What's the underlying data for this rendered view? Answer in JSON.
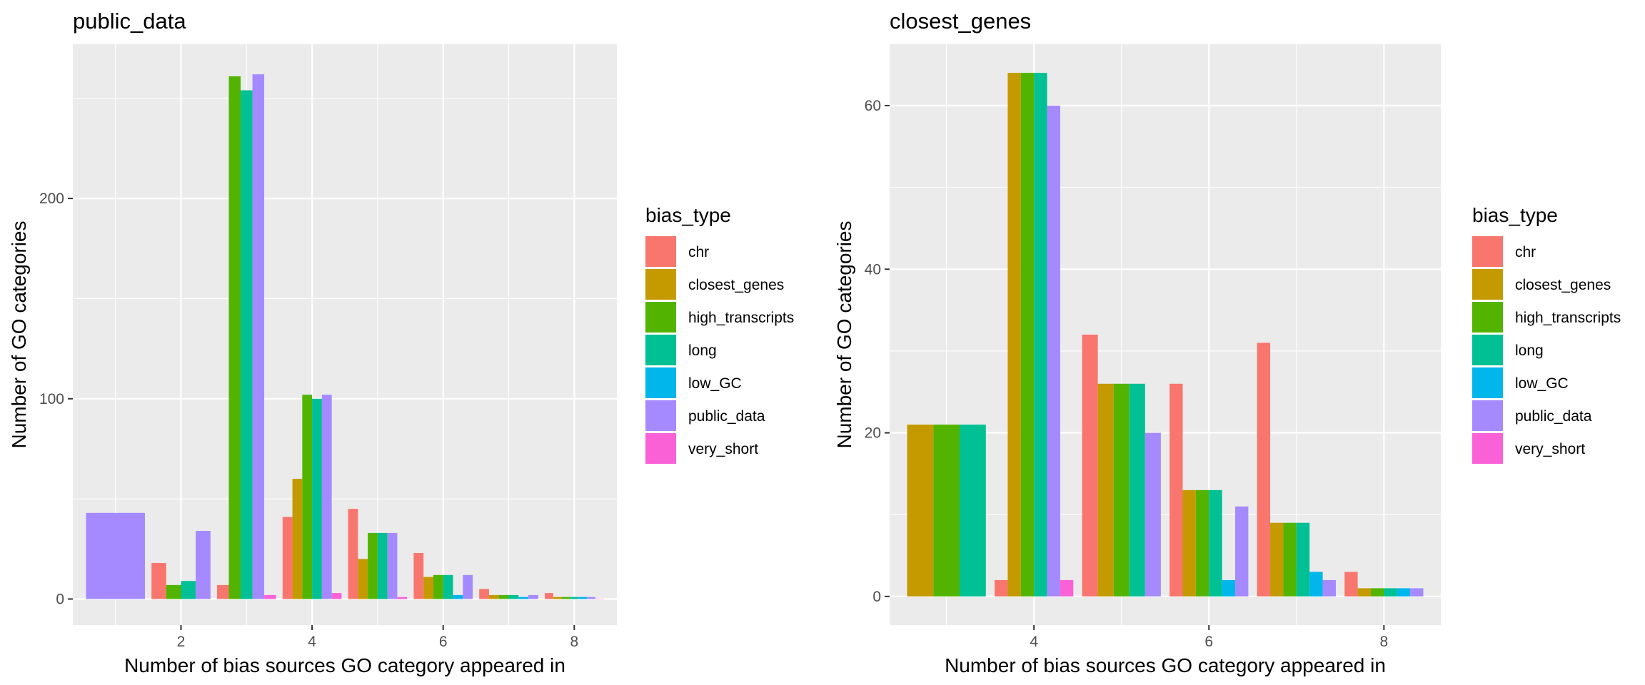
{
  "chart_data": [
    {
      "type": "bar",
      "title": "public_data",
      "xlabel": "Number of bias sources GO category appeared in",
      "ylabel": "Number of GO categories",
      "xlim": [
        0.35,
        8.65
      ],
      "ylim": [
        -13,
        277
      ],
      "x_ticks": [
        2,
        4,
        6,
        8
      ],
      "y_ticks": [
        0,
        100,
        200
      ],
      "grid": true,
      "legend": {
        "title": "bias_type",
        "position": "right",
        "entries": [
          "chr",
          "closest_genes",
          "high_transcripts",
          "long",
          "low_GC",
          "public_data",
          "very_short"
        ]
      },
      "bar_groups": [
        {
          "x": 1,
          "bars": [
            {
              "series": "public_data",
              "value": 43
            }
          ]
        },
        {
          "x": 2,
          "bars": [
            {
              "series": "chr",
              "value": 18
            },
            {
              "series": "high_transcripts",
              "value": 7
            },
            {
              "series": "long",
              "value": 9
            },
            {
              "series": "public_data",
              "value": 34
            }
          ]
        },
        {
          "x": 3,
          "bars": [
            {
              "series": "chr",
              "value": 7
            },
            {
              "series": "high_transcripts",
              "value": 261
            },
            {
              "series": "long",
              "value": 254
            },
            {
              "series": "public_data",
              "value": 262
            },
            {
              "series": "very_short",
              "value": 2
            }
          ]
        },
        {
          "x": 4,
          "bars": [
            {
              "series": "chr",
              "value": 41
            },
            {
              "series": "closest_genes",
              "value": 60
            },
            {
              "series": "high_transcripts",
              "value": 102
            },
            {
              "series": "long",
              "value": 100
            },
            {
              "series": "public_data",
              "value": 102
            },
            {
              "series": "very_short",
              "value": 3
            }
          ]
        },
        {
          "x": 5,
          "bars": [
            {
              "series": "chr",
              "value": 45
            },
            {
              "series": "closest_genes",
              "value": 20
            },
            {
              "series": "high_transcripts",
              "value": 33
            },
            {
              "series": "long",
              "value": 33
            },
            {
              "series": "public_data",
              "value": 33
            },
            {
              "series": "very_short",
              "value": 1
            }
          ]
        },
        {
          "x": 6,
          "bars": [
            {
              "series": "chr",
              "value": 23
            },
            {
              "series": "closest_genes",
              "value": 11
            },
            {
              "series": "high_transcripts",
              "value": 12
            },
            {
              "series": "long",
              "value": 12
            },
            {
              "series": "low_GC",
              "value": 2
            },
            {
              "series": "public_data",
              "value": 12
            }
          ]
        },
        {
          "x": 7,
          "bars": [
            {
              "series": "chr",
              "value": 5
            },
            {
              "series": "closest_genes",
              "value": 2
            },
            {
              "series": "high_transcripts",
              "value": 2
            },
            {
              "series": "long",
              "value": 2
            },
            {
              "series": "low_GC",
              "value": 1
            },
            {
              "series": "public_data",
              "value": 2
            }
          ]
        },
        {
          "x": 8,
          "bars": [
            {
              "series": "chr",
              "value": 3
            },
            {
              "series": "closest_genes",
              "value": 1
            },
            {
              "series": "high_transcripts",
              "value": 1
            },
            {
              "series": "long",
              "value": 1
            },
            {
              "series": "low_GC",
              "value": 1
            },
            {
              "series": "public_data",
              "value": 1
            },
            {
              "series": "very_short",
              "value": 0
            }
          ]
        }
      ]
    },
    {
      "type": "bar",
      "title": "closest_genes",
      "xlabel": "Number of bias sources GO category appeared in",
      "ylabel": "Number of GO categories",
      "xlim": [
        2.35,
        8.65
      ],
      "ylim": [
        -3.5,
        67.5
      ],
      "x_ticks": [
        4,
        6,
        8
      ],
      "y_ticks": [
        0,
        20,
        40,
        60
      ],
      "grid": true,
      "legend": {
        "title": "bias_type",
        "position": "right",
        "entries": [
          "chr",
          "closest_genes",
          "high_transcripts",
          "long",
          "low_GC",
          "public_data",
          "very_short"
        ]
      },
      "bar_groups": [
        {
          "x": 3,
          "bars": [
            {
              "series": "closest_genes",
              "value": 21
            },
            {
              "series": "high_transcripts",
              "value": 21
            },
            {
              "series": "long",
              "value": 21
            }
          ]
        },
        {
          "x": 4,
          "bars": [
            {
              "series": "chr",
              "value": 2
            },
            {
              "series": "closest_genes",
              "value": 64
            },
            {
              "series": "high_transcripts",
              "value": 64
            },
            {
              "series": "long",
              "value": 64
            },
            {
              "series": "public_data",
              "value": 60
            },
            {
              "series": "very_short",
              "value": 2
            }
          ]
        },
        {
          "x": 5,
          "bars": [
            {
              "series": "chr",
              "value": 32
            },
            {
              "series": "closest_genes",
              "value": 26
            },
            {
              "series": "high_transcripts",
              "value": 26
            },
            {
              "series": "long",
              "value": 26
            },
            {
              "series": "public_data",
              "value": 20
            }
          ]
        },
        {
          "x": 6,
          "bars": [
            {
              "series": "chr",
              "value": 26
            },
            {
              "series": "closest_genes",
              "value": 13
            },
            {
              "series": "high_transcripts",
              "value": 13
            },
            {
              "series": "long",
              "value": 13
            },
            {
              "series": "low_GC",
              "value": 2
            },
            {
              "series": "public_data",
              "value": 11
            }
          ]
        },
        {
          "x": 7,
          "bars": [
            {
              "series": "chr",
              "value": 31
            },
            {
              "series": "closest_genes",
              "value": 9
            },
            {
              "series": "high_transcripts",
              "value": 9
            },
            {
              "series": "long",
              "value": 9
            },
            {
              "series": "low_GC",
              "value": 3
            },
            {
              "series": "public_data",
              "value": 2
            }
          ]
        },
        {
          "x": 8,
          "bars": [
            {
              "series": "chr",
              "value": 3
            },
            {
              "series": "closest_genes",
              "value": 1
            },
            {
              "series": "high_transcripts",
              "value": 1
            },
            {
              "series": "long",
              "value": 1
            },
            {
              "series": "low_GC",
              "value": 1
            },
            {
              "series": "public_data",
              "value": 1
            }
          ]
        }
      ]
    }
  ],
  "colors": {
    "chr": "#F8766D",
    "closest_genes": "#C49A00",
    "high_transcripts": "#53B400",
    "long": "#00C094",
    "low_GC": "#00B6EB",
    "public_data": "#A58AFF",
    "very_short": "#FB61D7",
    "panel_bg": "#EBEBEB",
    "grid": "#FFFFFF"
  }
}
